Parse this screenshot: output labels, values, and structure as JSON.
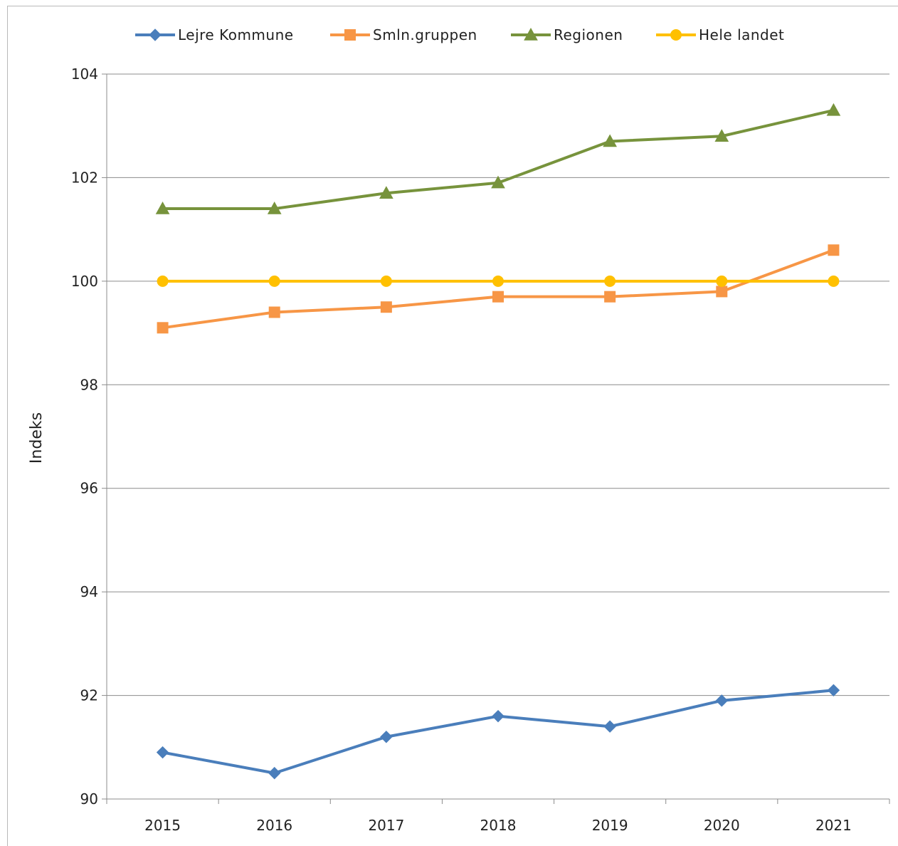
{
  "chart_data": {
    "type": "line",
    "title": "",
    "xlabel": "",
    "ylabel": "Indeks",
    "ylim": [
      90,
      104
    ],
    "yticks": [
      90,
      92,
      94,
      96,
      98,
      100,
      102,
      104
    ],
    "grid": true,
    "legend_position": "top",
    "categories": [
      "2015",
      "2016",
      "2017",
      "2018",
      "2019",
      "2020",
      "2021"
    ],
    "series": [
      {
        "name": "Lejre Kommune",
        "color": "#4a7ebb",
        "marker": "diamond",
        "values": [
          90.9,
          90.5,
          91.2,
          91.6,
          91.4,
          91.9,
          92.1
        ]
      },
      {
        "name": "Smln.gruppen",
        "color": "#f79646",
        "marker": "square",
        "values": [
          99.1,
          99.4,
          99.5,
          99.7,
          99.7,
          99.8,
          100.6
        ]
      },
      {
        "name": "Regionen",
        "color": "#77933c",
        "marker": "triangle",
        "values": [
          101.4,
          101.4,
          101.7,
          101.9,
          102.7,
          102.8,
          103.3
        ]
      },
      {
        "name": "Hele landet",
        "color": "#ffc000",
        "marker": "circle",
        "values": [
          100,
          100,
          100,
          100,
          100,
          100,
          100
        ]
      }
    ]
  }
}
